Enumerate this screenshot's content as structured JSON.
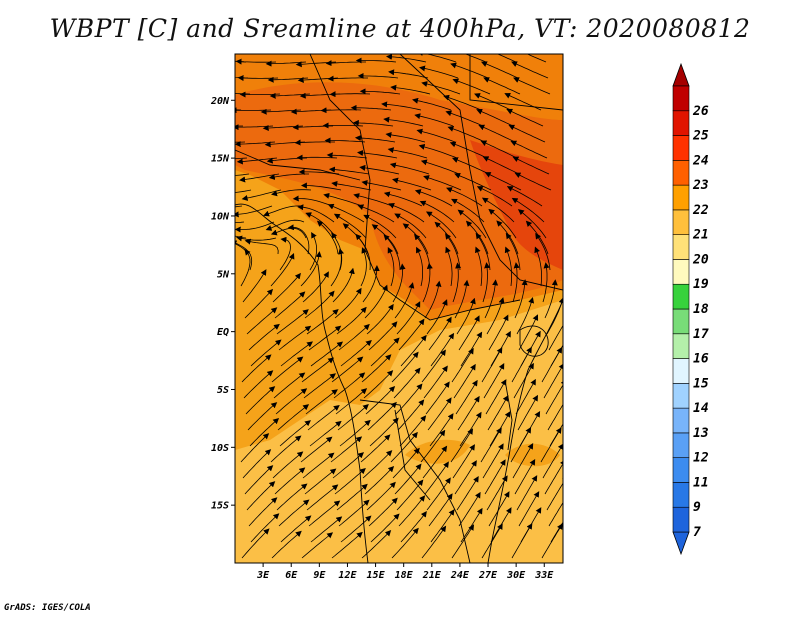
{
  "title": "WBPT [C] and Sreamline at 400hPa, VT: 2020080812",
  "credit": "GrADS: IGES/COLA",
  "map": {
    "lon_range": [
      0,
      35
    ],
    "lat_range": [
      -20,
      24
    ],
    "lat_ticks": [
      {
        "value": 20,
        "label": "20N"
      },
      {
        "value": 15,
        "label": "15N"
      },
      {
        "value": 10,
        "label": "10N"
      },
      {
        "value": 5,
        "label": "5N"
      },
      {
        "value": 0,
        "label": "EQ"
      },
      {
        "value": -5,
        "label": "5S"
      },
      {
        "value": -10,
        "label": "10S"
      },
      {
        "value": -15,
        "label": "15S"
      }
    ],
    "lon_ticks": [
      {
        "value": 3,
        "label": "3E"
      },
      {
        "value": 6,
        "label": "6E"
      },
      {
        "value": 9,
        "label": "9E"
      },
      {
        "value": 12,
        "label": "12E"
      },
      {
        "value": 15,
        "label": "15E"
      },
      {
        "value": 18,
        "label": "18E"
      },
      {
        "value": 21,
        "label": "21E"
      },
      {
        "value": 24,
        "label": "24E"
      },
      {
        "value": 27,
        "label": "27E"
      },
      {
        "value": 30,
        "label": "30E"
      },
      {
        "value": 33,
        "label": "33E"
      }
    ]
  },
  "colorbar": {
    "levels": [
      {
        "label": "7",
        "color": "#1e64dc"
      },
      {
        "label": "9",
        "color": "#2878e6"
      },
      {
        "label": "11",
        "color": "#3c8cf0"
      },
      {
        "label": "12",
        "color": "#5aa0f5"
      },
      {
        "label": "13",
        "color": "#78b4fa"
      },
      {
        "label": "14",
        "color": "#a0d2ff"
      },
      {
        "label": "15",
        "color": "#e1f5ff"
      },
      {
        "label": "16",
        "color": "#b4f0aa"
      },
      {
        "label": "17",
        "color": "#78dc78"
      },
      {
        "label": "18",
        "color": "#37d23c"
      },
      {
        "label": "19",
        "color": "#fffabe"
      },
      {
        "label": "20",
        "color": "#ffe178"
      },
      {
        "label": "21",
        "color": "#ffc03c"
      },
      {
        "label": "22",
        "color": "#ffa000"
      },
      {
        "label": "23",
        "color": "#ff6000"
      },
      {
        "label": "24",
        "color": "#ff3200"
      },
      {
        "label": "25",
        "color": "#e11400"
      },
      {
        "label": "26",
        "color": "#c00000"
      }
    ],
    "under_color": "#1e64dc",
    "over_color": "#a50000"
  },
  "field_colors": {
    "c20": "#fbbf46",
    "c21": "#f5a31a",
    "c22": "#f0800a",
    "c23": "#ec6a0e",
    "c24": "#e5450c"
  }
}
